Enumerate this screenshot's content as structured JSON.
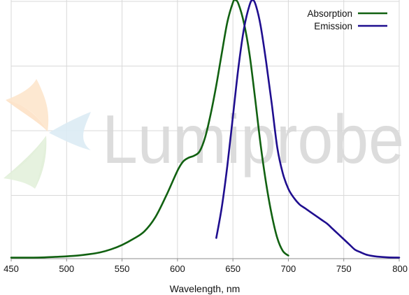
{
  "watermark": {
    "text": "Lumiprobe"
  },
  "chart_data": {
    "type": "line",
    "title": "",
    "xlabel": "Wavelength, nm",
    "ylabel": "",
    "xlim": [
      450,
      800
    ],
    "ylim": [
      0,
      1
    ],
    "x_ticks": [
      450,
      500,
      550,
      600,
      650,
      700,
      750,
      800
    ],
    "y_gridlines": [
      0.25,
      0.5,
      0.75,
      1.0
    ],
    "grid": true,
    "legend_position": "top-right",
    "series": [
      {
        "name": "Absorption",
        "color": "#116111",
        "points": [
          [
            450,
            0.004
          ],
          [
            460,
            0.004
          ],
          [
            470,
            0.004
          ],
          [
            480,
            0.005
          ],
          [
            490,
            0.007
          ],
          [
            500,
            0.009
          ],
          [
            510,
            0.012
          ],
          [
            520,
            0.017
          ],
          [
            530,
            0.024
          ],
          [
            540,
            0.036
          ],
          [
            550,
            0.053
          ],
          [
            560,
            0.076
          ],
          [
            570,
            0.105
          ],
          [
            580,
            0.16
          ],
          [
            590,
            0.245
          ],
          [
            600,
            0.34
          ],
          [
            605,
            0.375
          ],
          [
            610,
            0.39
          ],
          [
            615,
            0.398
          ],
          [
            620,
            0.415
          ],
          [
            625,
            0.47
          ],
          [
            630,
            0.56
          ],
          [
            635,
            0.67
          ],
          [
            640,
            0.795
          ],
          [
            645,
            0.915
          ],
          [
            650,
            0.99
          ],
          [
            652,
            1.0
          ],
          [
            655,
            0.985
          ],
          [
            660,
            0.91
          ],
          [
            665,
            0.79
          ],
          [
            670,
            0.62
          ],
          [
            675,
            0.44
          ],
          [
            680,
            0.29
          ],
          [
            685,
            0.17
          ],
          [
            690,
            0.08
          ],
          [
            695,
            0.03
          ],
          [
            700,
            0.012
          ]
        ]
      },
      {
        "name": "Emission",
        "color": "#1f0e8f",
        "points": [
          [
            635,
            0.08
          ],
          [
            640,
            0.2
          ],
          [
            645,
            0.36
          ],
          [
            650,
            0.55
          ],
          [
            655,
            0.74
          ],
          [
            660,
            0.89
          ],
          [
            665,
            0.98
          ],
          [
            668,
            1.0
          ],
          [
            671,
            0.975
          ],
          [
            675,
            0.9
          ],
          [
            680,
            0.76
          ],
          [
            685,
            0.6
          ],
          [
            690,
            0.43
          ],
          [
            695,
            0.33
          ],
          [
            700,
            0.27
          ],
          [
            705,
            0.235
          ],
          [
            710,
            0.21
          ],
          [
            715,
            0.195
          ],
          [
            720,
            0.18
          ],
          [
            725,
            0.165
          ],
          [
            730,
            0.15
          ],
          [
            735,
            0.135
          ],
          [
            740,
            0.115
          ],
          [
            745,
            0.095
          ],
          [
            750,
            0.075
          ],
          [
            755,
            0.055
          ],
          [
            760,
            0.035
          ],
          [
            765,
            0.025
          ],
          [
            770,
            0.016
          ],
          [
            775,
            0.011
          ],
          [
            780,
            0.008
          ],
          [
            790,
            0.005
          ],
          [
            800,
            0.004
          ]
        ]
      }
    ]
  }
}
